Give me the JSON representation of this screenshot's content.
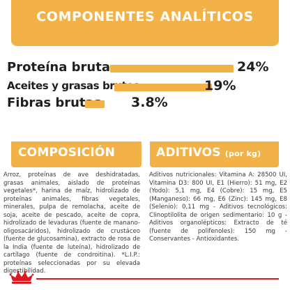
{
  "analytic": {
    "title": "COMPONENTES ANALÍTICOS",
    "rows": [
      {
        "label": "Proteína bruta",
        "value": "24%",
        "fraction": 0.24
      },
      {
        "label": "Aceites y grasas brutos",
        "value": "19%",
        "fraction": 0.19
      },
      {
        "label": "Fibras brutas",
        "value": "3.8%",
        "fraction": 0.038
      }
    ]
  },
  "composition": {
    "title": "COMPOSICIÓN",
    "text": "Arroz, proteínas de ave deshidratadas, grasas animales, aislado de proteínas vegetales*, harina de maíz, hidrolizado de proteínas animales, fibras vegetales, minerales, pulpa de remolacha, aceite de soja, aceite de pescado, aceite de copra, hidrolizado de levaduras (fuente de manano-oligosacáridos), hidrolizado de crustáceo (fuente de glucosamina), extracto de rosa de la India (fuente de luteína), hidrolizado de cartílago (fuente de condroitina). *L.I.P.: proteínas seleccionadas por su elevada digestibilidad."
  },
  "additives": {
    "title": "ADITIVOS",
    "title_suffix": "(por kg)",
    "text": "Aditivos nutricionales: Vitamina A: 28500 UI, Vitamina D3: 800 UI, E1 (Hierro): 51 mg, E2 (Yodo): 5,1 mg, E4 (Cobre): 15 mg, E5 (Manganeso): 66 mg, E6 (Zinc): 145 mg, E8 (Selenio): 0,11 mg - Aditivos tecnológicos: Clinoptilolita de origen sedimentario: 10 g - Aditivos organolépticos: Extracto de té (fuente de polifenoles): 150 mg - Conservantes - Antioxidantes."
  },
  "colors": {
    "accent": "#f2b247",
    "brand_red": "#d91a20"
  },
  "logo": {
    "icon": "crown-icon"
  }
}
